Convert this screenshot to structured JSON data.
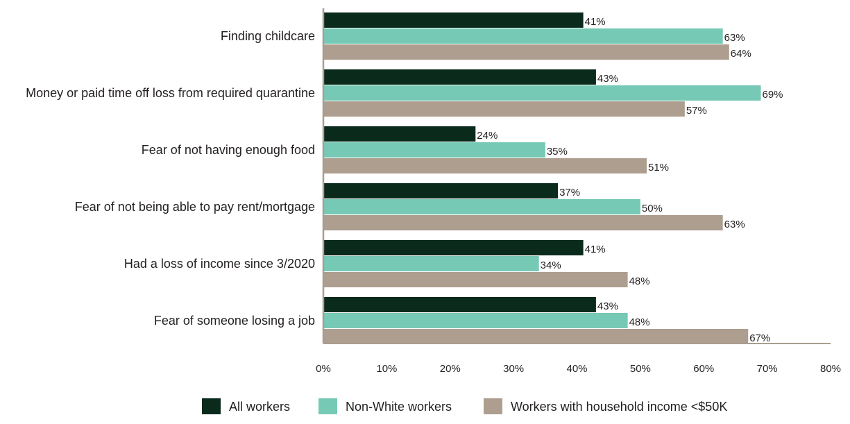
{
  "chart_data": {
    "type": "bar",
    "orientation": "horizontal",
    "categories": [
      "Finding childcare",
      "Money or paid time off loss from required quarantine",
      "Fear of not having enough food",
      "Fear of not being able to pay rent/mortgage",
      "Had a loss of income since 3/2020",
      "Fear of someone losing a job"
    ],
    "series": [
      {
        "name": "All workers",
        "color": "#0a2a1c",
        "values": [
          41,
          43,
          24,
          37,
          41,
          43
        ]
      },
      {
        "name": "Non-White workers",
        "color": "#76c9b5",
        "values": [
          63,
          69,
          35,
          50,
          34,
          48
        ]
      },
      {
        "name": "Workers with household income <$50K",
        "color": "#ad9e8f",
        "values": [
          64,
          57,
          51,
          63,
          48,
          67
        ]
      }
    ],
    "value_suffix": "%",
    "xlim": [
      0,
      80
    ],
    "xticks": [
      0,
      10,
      20,
      30,
      40,
      50,
      60,
      70,
      80
    ],
    "xtick_labels": [
      "0%",
      "10%",
      "20%",
      "30%",
      "40%",
      "50%",
      "60%",
      "70%",
      "80%"
    ],
    "grid": false,
    "legend_position": "bottom-center",
    "axis_color": "#a89d8f"
  }
}
